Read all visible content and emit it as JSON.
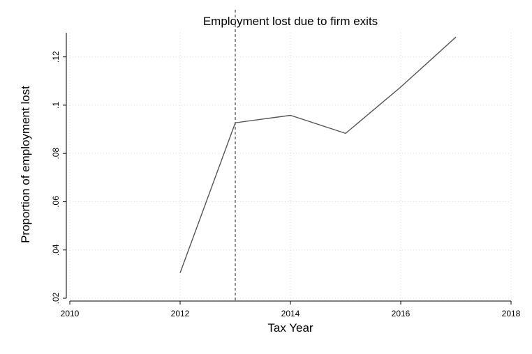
{
  "chart_data": {
    "type": "line",
    "title": "Employment lost due to firm exits",
    "xlabel": "Tax Year",
    "ylabel": "Proportion of employment lost",
    "xlim": [
      2010,
      2018
    ],
    "ylim": [
      0.02,
      0.13
    ],
    "x_ticks": [
      2010,
      2012,
      2014,
      2016,
      2018
    ],
    "x_tick_labels": [
      "2010",
      "2012",
      "2014",
      "2016",
      "2018"
    ],
    "y_ticks": [
      0.02,
      0.04,
      0.06,
      0.08,
      0.1,
      0.12
    ],
    "y_tick_labels": [
      ".02",
      ".04",
      ".06",
      ".08",
      ".1",
      ".12"
    ],
    "grid": true,
    "series": [
      {
        "x": [
          2012,
          2013,
          2014,
          2015,
          2016,
          2017
        ],
        "y": [
          0.0305,
          0.0927,
          0.0958,
          0.0883,
          0.1075,
          0.1282
        ],
        "color": "#555555"
      }
    ],
    "vertical_line": {
      "x": 2013,
      "style": "dashed",
      "color": "#555555"
    }
  }
}
